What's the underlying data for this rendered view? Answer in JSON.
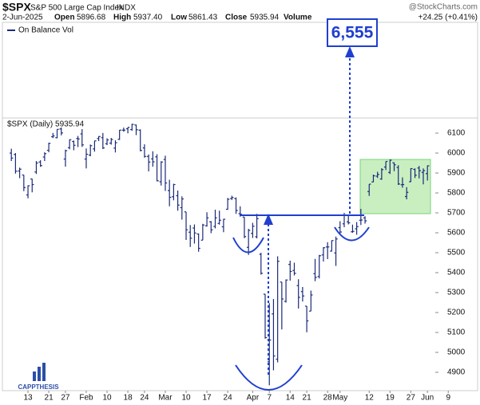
{
  "header": {
    "symbol": "$SPX",
    "name": "S&P 500 Large Cap Index",
    "exchange": "INDX",
    "date": "2-Jun-2025",
    "open_label": "Open",
    "open": "5896.68",
    "high_label": "High",
    "high": "5937.40",
    "low_label": "Low",
    "low": "5861.43",
    "close_label": "Close",
    "close": "5935.94",
    "volume_label": "Volume",
    "change": "+24.25 (+0.41%)",
    "source": "@StockCharts.com"
  },
  "obv_panel": {
    "legend": "On Balance Vol"
  },
  "annotations": {
    "target": "6,555",
    "logo": "CAPPTHESIS"
  },
  "chart_data": {
    "type": "ohlc",
    "legend": "$SPX (Daily) 5935.94",
    "color": "#1b2a7a",
    "categories": [
      null,
      null,
      null,
      null,
      "13",
      null,
      null,
      null,
      null,
      "21",
      null,
      null,
      null,
      "27",
      null,
      null,
      null,
      null,
      "Feb",
      null,
      null,
      null,
      null,
      "10",
      null,
      null,
      null,
      null,
      "18",
      null,
      null,
      null,
      "24",
      null,
      null,
      null,
      null,
      "Mar",
      null,
      null,
      null,
      null,
      "10",
      null,
      null,
      null,
      null,
      "17",
      null,
      null,
      null,
      null,
      "24",
      null,
      null,
      null,
      null,
      null,
      "Apr",
      null,
      null,
      null,
      "7",
      null,
      null,
      null,
      null,
      "14",
      null,
      null,
      null,
      "21",
      null,
      null,
      null,
      null,
      "28",
      null,
      null,
      "May",
      null,
      null,
      null,
      null,
      null,
      null,
      "12",
      null,
      null,
      null,
      null,
      "19",
      null,
      null,
      null,
      null,
      "27",
      null,
      null,
      null,
      "Jun",
      null,
      null,
      null,
      null,
      "9"
    ],
    "open": [
      6000,
      5993,
      5910,
      5890,
      5790,
      5870,
      5905,
      5955,
      5980,
      6014,
      6082,
      6077,
      6121,
      5970,
      6027,
      6058,
      6073,
      6096,
      5970,
      5990,
      6021,
      6073,
      6077,
      6047,
      6050,
      6025,
      6069,
      6115,
      6122,
      6118,
      6141,
      6115,
      6026,
      5983,
      5971,
      5981,
      5856,
      5968,
      5812,
      5781,
      5786,
      5726,
      5705,
      5603,
      5624,
      5594,
      5563,
      5635,
      5655,
      5632,
      5647,
      5630,
      5718,
      5772,
      5772,
      5696,
      5679,
      5527,
      5597,
      5580,
      5492,
      5292,
      4953,
      5193,
      4966,
      5353,
      5256,
      5441,
      5411,
      5335,
      5305,
      5232,
      5207,
      5395,
      5381,
      5489,
      5529,
      5508,
      5499,
      5626,
      5645,
      5655,
      5605,
      5620,
      5663,
      5675,
      5807,
      5855,
      5884,
      5870,
      5930,
      5903,
      5951,
      5928,
      5841,
      5782,
      5856,
      5918,
      5925,
      5903,
      5897,
      null,
      null,
      null,
      null,
      null
    ],
    "high": [
      6022,
      6000,
      5927,
      5890,
      5838,
      5871,
      5960,
      5964,
      6004,
      6052,
      6101,
      6119,
      6128,
      6017,
      6069,
      6063,
      6086,
      6120,
      6023,
      6043,
      6062,
      6085,
      6101,
      6074,
      6076,
      6064,
      6116,
      6128,
      6129,
      6147,
      6143,
      6119,
      6044,
      5993,
      6009,
      5994,
      5959,
      5987,
      5866,
      5846,
      5812,
      5783,
      5705,
      5639,
      5642,
      5597,
      5645,
      5703,
      5659,
      5716,
      5711,
      5670,
      5775,
      5786,
      5777,
      5733,
      5679,
      5620,
      5650,
      5695,
      5500,
      5293,
      5247,
      5268,
      5482,
      5353,
      5366,
      5460,
      5450,
      5367,
      5328,
      5232,
      5310,
      5469,
      5489,
      5528,
      5553,
      5562,
      5581,
      5658,
      5700,
      5684,
      5641,
      5654,
      5720,
      5683,
      5844,
      5892,
      5906,
      5924,
      5958,
      5968,
      5953,
      5939,
      5878,
      5829,
      5924,
      5923,
      5935,
      5923,
      5938,
      null,
      null,
      null,
      null,
      null
    ],
    "low": [
      5960,
      5897,
      5874,
      5809,
      5773,
      5803,
      5895,
      5931,
      5960,
      6004,
      6075,
      6074,
      6089,
      5932,
      6019,
      6014,
      6030,
      6031,
      5923,
      5984,
      6007,
      6060,
      6020,
      6040,
      6042,
      6003,
      6066,
      6107,
      6099,
      6112,
      6090,
      6009,
      5977,
      5908,
      5932,
      5858,
      5837,
      5810,
      5733,
      5763,
      5711,
      5666,
      5564,
      5529,
      5546,
      5505,
      5563,
      5631,
      5598,
      5622,
      5641,
      5603,
      5716,
      5765,
      5695,
      5681,
      5573,
      5489,
      5574,
      5572,
      5390,
      5069,
      4835,
      4910,
      4950,
      5115,
      5250,
      5360,
      5386,
      5220,
      5255,
      5101,
      5207,
      5357,
      5371,
      5456,
      5468,
      5506,
      5434,
      5597,
      5628,
      5642,
      5600,
      5590,
      5639,
      5646,
      5785,
      5854,
      5875,
      5866,
      5915,
      5895,
      5909,
      5840,
      5826,
      5768,
      5855,
      5875,
      5873,
      5843,
      5862,
      null,
      null,
      null,
      null,
      null
    ],
    "close": [
      5975,
      5909,
      5919,
      5827,
      5836,
      5842,
      5950,
      5937,
      5997,
      6049,
      6086,
      6119,
      6101,
      6012,
      6067,
      6039,
      6071,
      6041,
      5994,
      6037,
      6061,
      6083,
      6026,
      6066,
      6068,
      6052,
      6115,
      6115,
      6129,
      6144,
      6117,
      6013,
      5983,
      5955,
      5956,
      5861,
      5955,
      5850,
      5778,
      5842,
      5739,
      5770,
      5615,
      5573,
      5599,
      5522,
      5639,
      5675,
      5615,
      5675,
      5663,
      5668,
      5768,
      5777,
      5712,
      5693,
      5581,
      5612,
      5633,
      5671,
      5397,
      5074,
      5062,
      4982,
      5457,
      5268,
      5363,
      5406,
      5397,
      5276,
      5283,
      5158,
      5288,
      5376,
      5485,
      5525,
      5529,
      5561,
      5569,
      5604,
      5687,
      5650,
      5607,
      5631,
      5664,
      5660,
      5844,
      5886,
      5893,
      5917,
      5958,
      5964,
      5941,
      5845,
      5842,
      5803,
      5922,
      5889,
      5912,
      5912,
      5936,
      null,
      null,
      null,
      null,
      null
    ],
    "ylim": [
      4808,
      6168
    ],
    "yticks": [
      4900,
      5000,
      5100,
      5200,
      5300,
      5400,
      5500,
      5600,
      5700,
      5800,
      5900,
      6000,
      6100
    ],
    "grid": false
  }
}
